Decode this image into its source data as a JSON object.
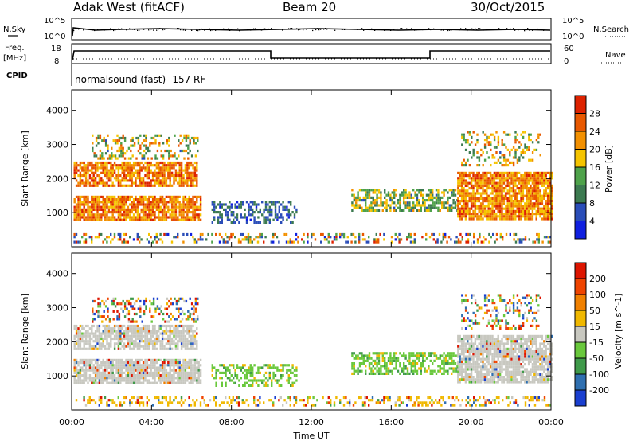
{
  "header": {
    "title": "Adak West (fitACF)",
    "beam": "Beam 20",
    "date": "30/Oct/2015"
  },
  "panels": {
    "nsky_label": "N.Sky",
    "nsearch_label": "N.Search",
    "noise_ticks": [
      "10^5",
      "10^0"
    ],
    "freq_label": "Freq.",
    "freq_unit": "[MHz]",
    "freq_ticks": [
      "18",
      "8"
    ],
    "nave_label": "Nave",
    "nave_ticks": [
      "60",
      "0"
    ],
    "cpid_label": "CPID",
    "cpid_text": "normalsound (fast) -157 RF"
  },
  "chart_data": [
    {
      "type": "heatmap",
      "name": "power",
      "ylabel": "Slant Range [km]",
      "yticks": [
        1000,
        2000,
        3000,
        4000
      ],
      "ylim": [
        0,
        4600
      ],
      "colorbar": {
        "label": "Power [dB]",
        "ticks": [
          4,
          8,
          12,
          16,
          20,
          24,
          28
        ],
        "colors": [
          "#1020e0",
          "#2a4db8",
          "#3c7a50",
          "#4ea24a",
          "#f5c400",
          "#f29000",
          "#e85800",
          "#dd2200"
        ]
      }
    },
    {
      "type": "heatmap",
      "name": "velocity",
      "ylabel": "Slant Range [km]",
      "yticks": [
        1000,
        2000,
        3000,
        4000
      ],
      "ylim": [
        0,
        4600
      ],
      "colorbar": {
        "label": "Velocity [m s^-1]",
        "ticks": [
          200,
          100,
          50,
          15,
          -15,
          -50,
          -100,
          -200
        ],
        "colors": [
          "#1a3fd0",
          "#2f6fb0",
          "#3f9a4a",
          "#69c83c",
          "#c8c8c0",
          "#f0b800",
          "#f08000",
          "#ef4400",
          "#dd1500"
        ]
      }
    }
  ],
  "xaxis": {
    "label": "Time UT",
    "ticks": [
      "00:00",
      "04:00",
      "08:00",
      "12:00",
      "16:00",
      "20:00",
      "00:00"
    ]
  }
}
